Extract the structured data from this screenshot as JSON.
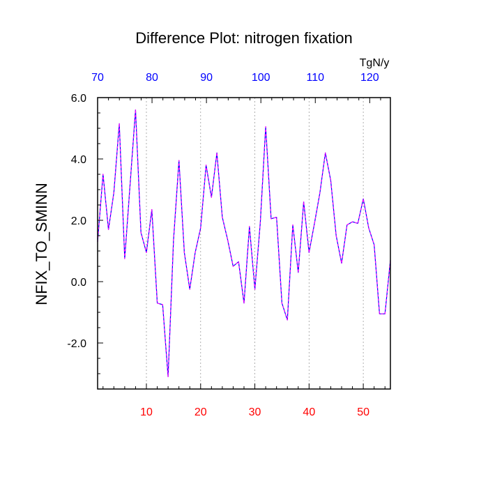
{
  "colors": {
    "bottom_axis_labels": "#ff0000",
    "top_axis_labels": "#0000ff",
    "line_dash_a": "#0000ff",
    "line_dash_b": "#ff00ff",
    "grid": "#9a9a9a",
    "axis": "#000000"
  },
  "chart_data": {
    "type": "line",
    "title": "Difference Plot: nitrogen fixation",
    "ylabel": "NFIX_TO_SMINN",
    "top_axis_unit": "TgN/y",
    "xlim": [
      1,
      55
    ],
    "ylim": [
      -3.5,
      6.0
    ],
    "bottom_ticks": [
      10,
      20,
      30,
      40,
      50
    ],
    "bottom_tick_labels": [
      "10",
      "20",
      "30",
      "40",
      "50"
    ],
    "top_ticks": [
      70,
      80,
      90,
      100,
      110,
      120
    ],
    "top_tick_labels": [
      "70",
      "80",
      "90",
      "100",
      "110",
      "120"
    ],
    "top_axis_range": [
      70,
      123.8
    ],
    "y_ticks": [
      -2.0,
      0.0,
      2.0,
      4.0,
      6.0
    ],
    "y_tick_labels": [
      "-2.0",
      "0.0",
      "2.0",
      "4.0",
      "6.0"
    ],
    "grid_x": [
      10,
      20,
      30,
      40,
      50
    ],
    "series": [
      {
        "name": "NFIX_TO_SMINN difference",
        "x": [
          1,
          2,
          3,
          4,
          5,
          6,
          7,
          8,
          9,
          10,
          11,
          12,
          13,
          14,
          15,
          16,
          17,
          18,
          19,
          20,
          21,
          22,
          23,
          24,
          25,
          26,
          27,
          28,
          29,
          30,
          31,
          32,
          33,
          34,
          35,
          36,
          37,
          38,
          39,
          40,
          41,
          42,
          43,
          44,
          45,
          46,
          47,
          48,
          49,
          50,
          51,
          52,
          53,
          54,
          55
        ],
        "values": [
          1.3,
          3.5,
          1.7,
          2.9,
          5.15,
          0.75,
          3.2,
          5.6,
          1.6,
          0.95,
          2.35,
          -0.7,
          -0.75,
          -3.1,
          1.35,
          3.95,
          0.95,
          -0.25,
          0.95,
          1.75,
          3.8,
          2.75,
          4.2,
          2.1,
          1.35,
          0.5,
          0.65,
          -0.7,
          1.8,
          -0.25,
          1.9,
          5.05,
          2.05,
          2.1,
          -0.7,
          -1.25,
          1.85,
          0.3,
          2.6,
          0.95,
          1.9,
          2.9,
          4.2,
          3.3,
          1.5,
          0.6,
          1.85,
          1.95,
          1.9,
          2.7,
          1.75,
          1.2,
          -1.05,
          -1.05,
          0.7
        ]
      }
    ]
  }
}
